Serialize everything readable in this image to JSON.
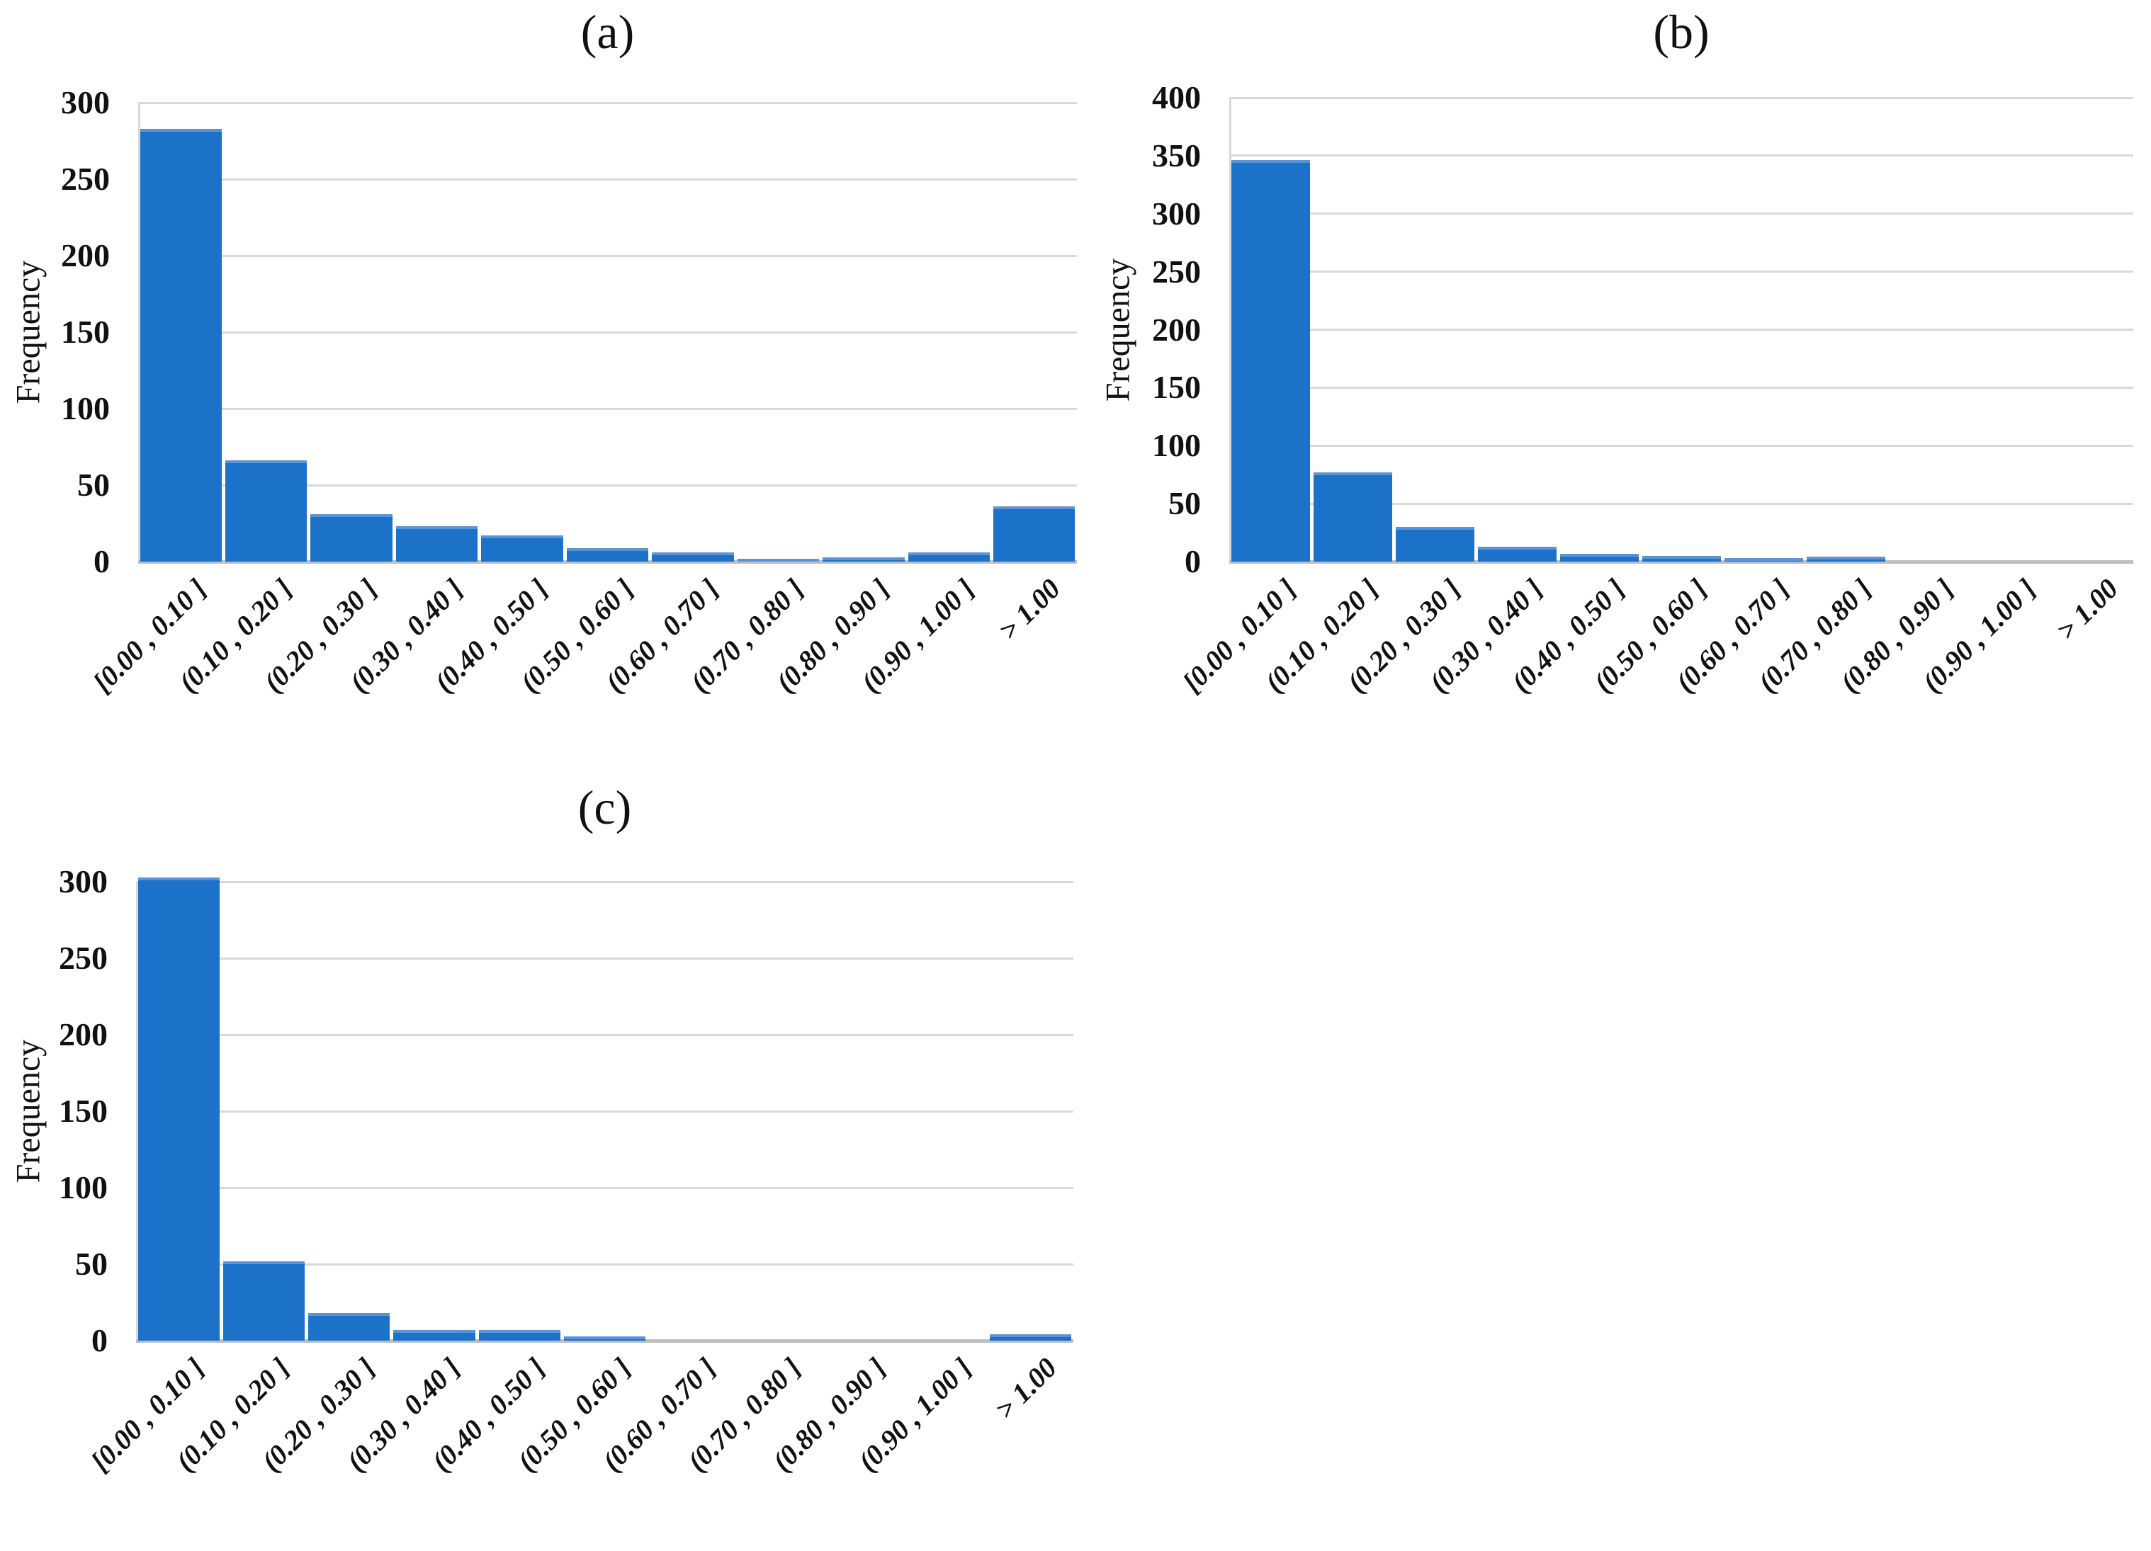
{
  "chart_data": [
    {
      "type": "bar",
      "title": "(a)",
      "ylabel": "Frequency",
      "xlabel": "",
      "categories": [
        "[0.00 , 0.10 ]",
        "(0.10 , 0.20 ]",
        "(0.20 , 0.30 ]",
        "(0.30 , 0.40 ]",
        "(0.40 , 0.50 ]",
        "(0.50 , 0.60 ]",
        "(0.60 , 0.70 ]",
        "(0.70 , 0.80 ]",
        "(0.80 , 0.90 ]",
        "(0.90 , 1.00 ]",
        "> 1.00"
      ],
      "values": [
        283,
        66,
        31,
        23,
        17,
        9,
        6,
        2,
        3,
        6,
        36
      ],
      "ylim": [
        0,
        300
      ],
      "ytick_step": 50,
      "grid": true,
      "legend": "none",
      "bar_color": "#1C72C8",
      "bar_cap_color": "#5B94D6",
      "gridline_color": "#D9D9D9",
      "axis_color": "#BFBFBF"
    },
    {
      "type": "bar",
      "title": "(b)",
      "ylabel": "Frequency",
      "xlabel": "",
      "categories": [
        "[0.00 , 0.10 ]",
        "(0.10 , 0.20 ]",
        "(0.20 , 0.30 ]",
        "(0.30 , 0.40 ]",
        "(0.40 , 0.50 ]",
        "(0.50 , 0.60 ]",
        "(0.60 , 0.70 ]",
        "(0.70 , 0.80 ]",
        "(0.80 , 0.90 ]",
        "(0.90 , 1.00 ]",
        "> 1.00"
      ],
      "values": [
        346,
        77,
        30,
        13,
        7,
        5,
        3,
        4,
        0,
        0,
        0
      ],
      "ylim": [
        0,
        400
      ],
      "ytick_step": 50,
      "grid": true,
      "legend": "none",
      "bar_color": "#1C72C8",
      "bar_cap_color": "#5B94D6",
      "gridline_color": "#D9D9D9",
      "axis_color": "#BFBFBF"
    },
    {
      "type": "bar",
      "title": "(c)",
      "ylabel": "Frequency",
      "xlabel": "",
      "categories": [
        "[0.00 , 0.10 ]",
        "(0.10 , 0.20 ]",
        "(0.20 , 0.30 ]",
        "(0.30 , 0.40 ]",
        "(0.40 , 0.50 ]",
        "(0.50 , 0.60 ]",
        "(0.60 , 0.70 ]",
        "(0.70 , 0.80 ]",
        "(0.80 , 0.90 ]",
        "(0.90 , 1.00 ]",
        "> 1.00"
      ],
      "values": [
        303,
        52,
        18,
        7,
        7,
        3,
        0,
        0,
        0,
        0,
        4
      ],
      "ylim": [
        0,
        300
      ],
      "ytick_step": 50,
      "grid": true,
      "legend": "none",
      "bar_color": "#1C72C8",
      "bar_cap_color": "#5B94D6",
      "gridline_color": "#D9D9D9",
      "axis_color": "#BFBFBF"
    }
  ]
}
